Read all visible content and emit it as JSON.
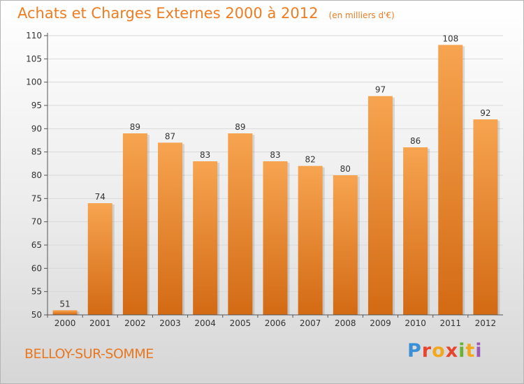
{
  "header": {
    "title": "Achats et Charges Externes 2000 à 2012",
    "unit": "(en milliers d'€)"
  },
  "location": {
    "name": "BELLOY-SUR-SOMME"
  },
  "logo": {
    "letters": [
      {
        "ch": "P",
        "color": "#3a8fd6"
      },
      {
        "ch": "r",
        "color": "#e8452c"
      },
      {
        "ch": "o",
        "color": "#f2a81d"
      },
      {
        "ch": "x",
        "color": "#e8452c"
      },
      {
        "ch": "i",
        "color": "#6ab42d"
      },
      {
        "ch": "t",
        "color": "#f2a81d"
      },
      {
        "ch": "i",
        "color": "#9b59b6"
      }
    ]
  },
  "colors": {
    "bar_top": "#f7a450",
    "bar_bottom": "#d36a14",
    "grid": "#d9d9d9",
    "axis": "#555555",
    "label": "#333333"
  },
  "chart_data": {
    "type": "bar",
    "categories": [
      "2000",
      "2001",
      "2002",
      "2003",
      "2004",
      "2005",
      "2006",
      "2007",
      "2008",
      "2009",
      "2010",
      "2011",
      "2012"
    ],
    "values": [
      51,
      74,
      89,
      87,
      83,
      89,
      83,
      82,
      80,
      97,
      86,
      108,
      92
    ],
    "ylim": [
      50,
      110
    ],
    "yticks": [
      50,
      55,
      60,
      65,
      70,
      75,
      80,
      85,
      90,
      95,
      100,
      105,
      110
    ],
    "grid": true,
    "legend": "none"
  }
}
